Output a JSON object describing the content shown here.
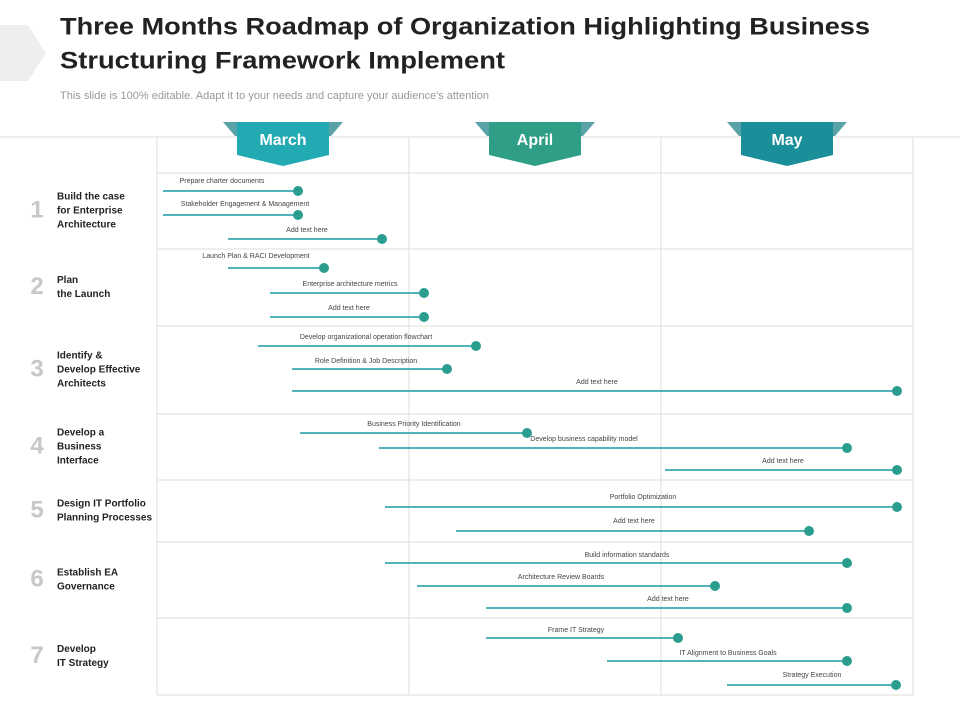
{
  "header": {
    "title": [
      "Three Months Roadmap of Organization Highlighting Business",
      "Structuring Framework Implement"
    ],
    "subtitle": "This slide is 100% editable. Adapt it to your needs and capture your audience's attention"
  },
  "months": [
    "March",
    "April",
    "May"
  ],
  "rows": [
    {
      "number": "1",
      "label": [
        "Build the case",
        "for Enterprise",
        "Architecture"
      ],
      "tasks": [
        "Prepare charter documents",
        "Stakeholder  Engagement  & Management",
        "Add text here"
      ]
    },
    {
      "number": "2",
      "label": [
        "Plan",
        "the Launch"
      ],
      "tasks": [
        "Launch  Plan & RACI Development",
        "Enterprise architecture metrics",
        "Add text here"
      ]
    },
    {
      "number": "3",
      "label": [
        "Identify &",
        "Develop Effective",
        "Architects"
      ],
      "tasks": [
        "Develop organizational  operation  flowchart",
        "Role Definition & Job Description",
        "Add text here"
      ]
    },
    {
      "number": "4",
      "label": [
        "Develop a",
        "Business",
        "Interface"
      ],
      "tasks": [
        "Business Priority Identification",
        "Develop business capability model",
        "Add text here"
      ]
    },
    {
      "number": "5",
      "label": [
        "Design IT Portfolio",
        "Planning Processes"
      ],
      "tasks": [
        "Portfolio Optimization",
        "Add text here"
      ]
    },
    {
      "number": "6",
      "label": [
        "Establish EA",
        "Governance"
      ],
      "tasks": [
        "Build information standards",
        "Architecture Review Boards",
        "Add text here"
      ]
    },
    {
      "number": "7",
      "label": [
        "Develop",
        "IT Strategy"
      ],
      "tasks": [
        "Frame IT Strategy",
        "IT Alignment to Business Goals",
        "Strategy Execution"
      ]
    }
  ]
}
